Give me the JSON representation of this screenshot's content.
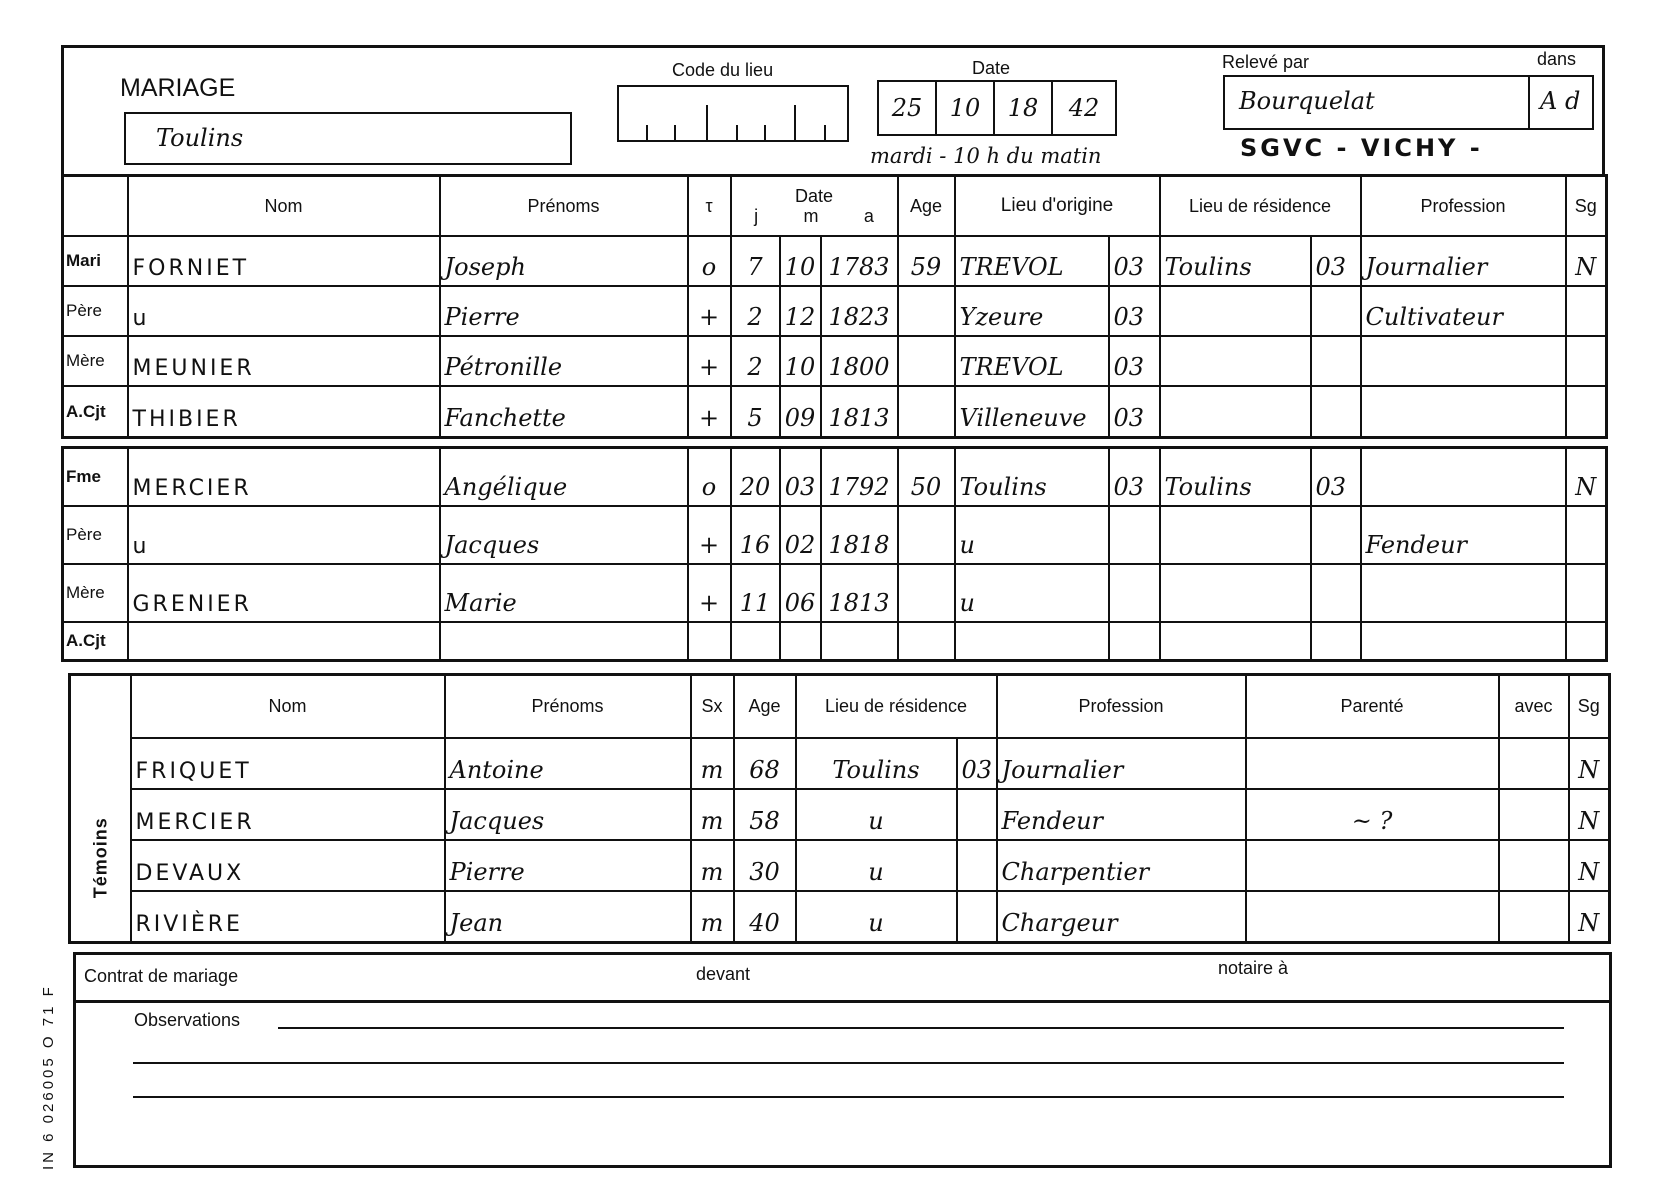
{
  "header": {
    "form_title": "MARIAGE",
    "place": "Toulins",
    "code_du_lieu_label": "Code du lieu",
    "date_label": "Date",
    "date_parts": [
      "25",
      "10",
      "18",
      "42"
    ],
    "date_note": "mardi - 10 h du matin",
    "releve_par_label": "Relevé par",
    "releve_par": "Bourquelat",
    "dans_label": "dans",
    "dans": "A d",
    "stamp": "SGVC - VICHY -"
  },
  "spouse_table": {
    "headers": {
      "nom": "Nom",
      "prenoms": "Prénoms",
      "tau": "τ",
      "date": "Date",
      "j": "j",
      "m": "m",
      "a": "a",
      "age": "Age",
      "lieu_origine": "Lieu d'origine",
      "lieu_residence": "Lieu de résidence",
      "profession": "Profession",
      "sg": "Sg"
    },
    "groom_rows": [
      {
        "role": "Mari",
        "nom": "FORNIET",
        "prenoms": "Joseph",
        "tau": "o",
        "j": "7",
        "m": "10",
        "a": "1783",
        "age": "59",
        "origine": "TREVOL",
        "origine_dep": "03",
        "residence": "Toulins",
        "residence_dep": "03",
        "profession": "Journalier",
        "sg": "N"
      },
      {
        "role": "Père",
        "nom": "u",
        "prenoms": "Pierre",
        "tau": "+",
        "j": "2",
        "m": "12",
        "a": "1823",
        "age": "",
        "origine": "Yzeure",
        "origine_dep": "03",
        "residence": "",
        "residence_dep": "",
        "profession": "Cultivateur",
        "sg": ""
      },
      {
        "role": "Mère",
        "nom": "MEUNIER",
        "prenoms": "Pétronille",
        "tau": "+",
        "j": "2",
        "m": "10",
        "a": "1800",
        "age": "",
        "origine": "TREVOL",
        "origine_dep": "03",
        "residence": "",
        "residence_dep": "",
        "profession": "",
        "sg": ""
      },
      {
        "role": "A.Cjt",
        "nom": "THIBIER",
        "prenoms": "Fanchette",
        "tau": "+",
        "j": "5",
        "m": "09",
        "a": "1813",
        "age": "",
        "origine": "Villeneuve",
        "origine_dep": "03",
        "residence": "",
        "residence_dep": "",
        "profession": "",
        "sg": ""
      }
    ],
    "bride_rows": [
      {
        "role": "Fme",
        "nom": "MERCIER",
        "prenoms": "Angélique",
        "tau": "o",
        "j": "20",
        "m": "03",
        "a": "1792",
        "age": "50",
        "origine": "Toulins",
        "origine_dep": "03",
        "residence": "Toulins",
        "residence_dep": "03",
        "profession": "",
        "sg": "N"
      },
      {
        "role": "Père",
        "nom": "u",
        "prenoms": "Jacques",
        "tau": "+",
        "j": "16",
        "m": "02",
        "a": "1818",
        "age": "",
        "origine": "u",
        "origine_dep": "",
        "residence": "",
        "residence_dep": "",
        "profession": "Fendeur",
        "sg": ""
      },
      {
        "role": "Mère",
        "nom": "GRENIER",
        "prenoms": "Marie",
        "tau": "+",
        "j": "11",
        "m": "06",
        "a": "1813",
        "age": "",
        "origine": "u",
        "origine_dep": "",
        "residence": "",
        "residence_dep": "",
        "profession": "",
        "sg": ""
      },
      {
        "role": "A.Cjt",
        "nom": "",
        "prenoms": "",
        "tau": "",
        "j": "",
        "m": "",
        "a": "",
        "age": "",
        "origine": "",
        "origine_dep": "",
        "residence": "",
        "residence_dep": "",
        "profession": "",
        "sg": ""
      }
    ]
  },
  "witnesses": {
    "section_label": "Témoins",
    "headers": {
      "nom": "Nom",
      "prenoms": "Prénoms",
      "sx": "Sx",
      "age": "Age",
      "lieu_residence": "Lieu de résidence",
      "profession": "Profession",
      "parente": "Parenté",
      "avec": "avec",
      "sg": "Sg"
    },
    "rows": [
      {
        "nom": "FRIQUET",
        "prenoms": "Antoine",
        "sx": "m",
        "age": "68",
        "residence": "Toulins",
        "residence_dep": "03",
        "profession": "Journalier",
        "parente": "",
        "avec": "",
        "sg": "N"
      },
      {
        "nom": "MERCIER",
        "prenoms": "Jacques",
        "sx": "m",
        "age": "58",
        "residence": "u",
        "residence_dep": "",
        "profession": "Fendeur",
        "parente": "~ ?",
        "avec": "",
        "sg": "N"
      },
      {
        "nom": "DEVAUX",
        "prenoms": "Pierre",
        "sx": "m",
        "age": "30",
        "residence": "u",
        "residence_dep": "",
        "profession": "Charpentier",
        "parente": "",
        "avec": "",
        "sg": "N"
      },
      {
        "nom": "RIVIÈRE",
        "prenoms": "Jean",
        "sx": "m",
        "age": "40",
        "residence": "u",
        "residence_dep": "",
        "profession": "Chargeur",
        "parente": "",
        "avec": "",
        "sg": "N"
      }
    ]
  },
  "footer": {
    "contrat_label": "Contrat de mariage",
    "devant_label": "devant",
    "notaire_label": "notaire à",
    "observations_label": "Observations",
    "form_code": "IN 6 026005 O 71 F"
  }
}
